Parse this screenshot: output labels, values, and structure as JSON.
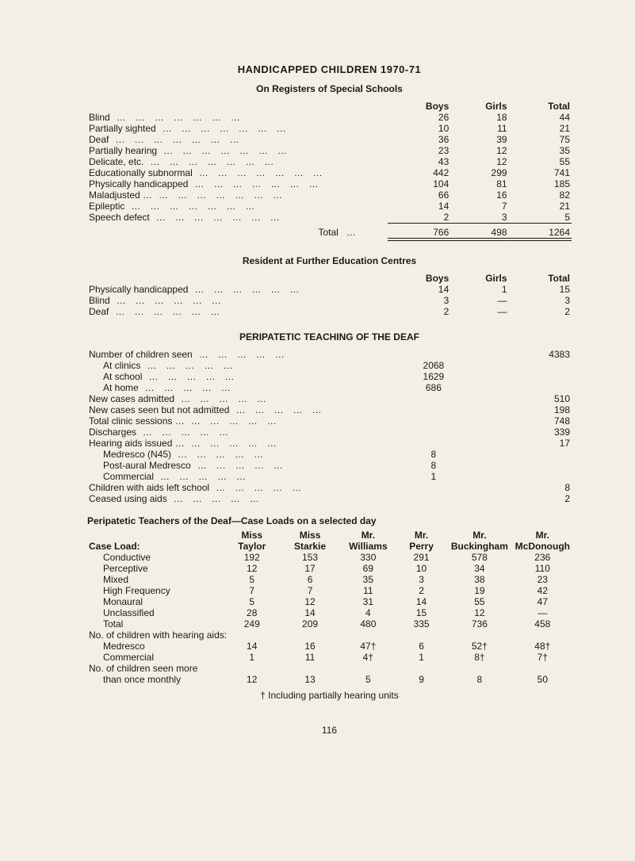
{
  "title": "HANDICAPPED CHILDREN 1970-71",
  "section1": {
    "heading": "On Registers of Special Schools",
    "cols": [
      "Boys",
      "Girls",
      "Total"
    ],
    "rows": [
      {
        "label": "Blind",
        "b": 26,
        "g": 18,
        "t": 44
      },
      {
        "label": "Partially sighted",
        "b": 10,
        "g": 11,
        "t": 21
      },
      {
        "label": "Deaf",
        "b": 36,
        "g": 39,
        "t": 75
      },
      {
        "label": "Partially hearing",
        "b": 23,
        "g": 12,
        "t": 35
      },
      {
        "label": "Delicate, etc.",
        "b": 43,
        "g": 12,
        "t": 55
      },
      {
        "label": "Educationally subnormal",
        "b": 442,
        "g": 299,
        "t": 741
      },
      {
        "label": "Physically handicapped",
        "b": 104,
        "g": 81,
        "t": 185
      },
      {
        "label": "Maladjusted …",
        "b": 66,
        "g": 16,
        "t": 82
      },
      {
        "label": "Epileptic",
        "b": 14,
        "g": 7,
        "t": 21
      },
      {
        "label": "Speech defect",
        "b": 2,
        "g": 3,
        "t": 5
      }
    ],
    "total_label": "Total",
    "total": {
      "b": 766,
      "g": 498,
      "t": 1264
    }
  },
  "section2": {
    "heading": "Resident at Further Education Centres",
    "cols": [
      "Boys",
      "Girls",
      "Total"
    ],
    "rows": [
      {
        "label": "Physically handicapped",
        "b": 14,
        "g": "1",
        "t": 15
      },
      {
        "label": "Blind",
        "b": 3,
        "g": "—",
        "t": 3
      },
      {
        "label": "Deaf",
        "b": 2,
        "g": "—",
        "t": 2
      }
    ]
  },
  "section3": {
    "heading": "PERIPATETIC TEACHING OF THE DEAF",
    "rows": [
      {
        "label": "Number of children seen",
        "c1": "",
        "c2": 4383,
        "indent": 0
      },
      {
        "label": "At clinics",
        "c1": 2068,
        "c2": "",
        "indent": 1
      },
      {
        "label": "At school",
        "c1": 1629,
        "c2": "",
        "indent": 1
      },
      {
        "label": "At home",
        "c1": 686,
        "c2": "",
        "indent": 1
      },
      {
        "label": "New cases admitted",
        "c1": "",
        "c2": 510,
        "indent": 0
      },
      {
        "label": "New cases seen but not admitted",
        "c1": "",
        "c2": 198,
        "indent": 0
      },
      {
        "label": "Total clinic sessions …",
        "c1": "",
        "c2": 748,
        "indent": 0
      },
      {
        "label": "Discharges",
        "c1": "",
        "c2": 339,
        "indent": 0
      },
      {
        "label": "Hearing aids issued …",
        "c1": "",
        "c2": 17,
        "indent": 0
      },
      {
        "label": "Medresco (N45)",
        "c1": 8,
        "c2": "",
        "indent": 1
      },
      {
        "label": "Post-aural Medresco",
        "c1": 8,
        "c2": "",
        "indent": 1
      },
      {
        "label": "Commercial",
        "c1": 1,
        "c2": "",
        "indent": 1
      },
      {
        "label": "Children with aids left school",
        "c1": "",
        "c2": 8,
        "indent": 0
      },
      {
        "label": "Ceased using aids",
        "c1": "",
        "c2": 2,
        "indent": 0
      }
    ]
  },
  "section4": {
    "heading": "Peripatetic Teachers of the Deaf—Case Loads on a selected day",
    "col_prefix": [
      "Miss",
      "Miss",
      "Mr.",
      "Mr.",
      "Mr.",
      "Mr."
    ],
    "col_name": [
      "Taylor",
      "Starkie",
      "Williams",
      "Perry",
      "Buckingham",
      "McDonough"
    ],
    "row_head": "Case Load:",
    "rows1": [
      {
        "label": "Conductive",
        "v": [
          192,
          153,
          330,
          291,
          578,
          236
        ]
      },
      {
        "label": "Perceptive",
        "v": [
          12,
          17,
          69,
          10,
          34,
          110
        ]
      },
      {
        "label": "Mixed",
        "v": [
          5,
          6,
          35,
          3,
          38,
          23
        ]
      },
      {
        "label": "High Frequency",
        "v": [
          7,
          7,
          11,
          2,
          19,
          42
        ]
      },
      {
        "label": "Monaural",
        "v": [
          5,
          12,
          31,
          14,
          55,
          47
        ]
      },
      {
        "label": "Unclassified",
        "v": [
          28,
          14,
          4,
          15,
          12,
          "—"
        ]
      },
      {
        "label": "Total",
        "v": [
          249,
          209,
          480,
          335,
          736,
          458
        ]
      }
    ],
    "sub1": "No. of children with hearing aids:",
    "rows2": [
      {
        "label": "Medresco",
        "v": [
          14,
          16,
          "47†",
          6,
          "52†",
          "48†"
        ]
      },
      {
        "label": "Commercial",
        "v": [
          1,
          11,
          "4†",
          1,
          "8†",
          "7†"
        ]
      }
    ],
    "sub2": "No. of children seen more",
    "sub2b": "than once monthly",
    "row3": {
      "v": [
        12,
        13,
        5,
        9,
        8,
        50
      ]
    },
    "footnote": "† Including partially hearing units"
  },
  "page_number": "116",
  "dotfill": "…     …     …     …     …     …     …     …"
}
